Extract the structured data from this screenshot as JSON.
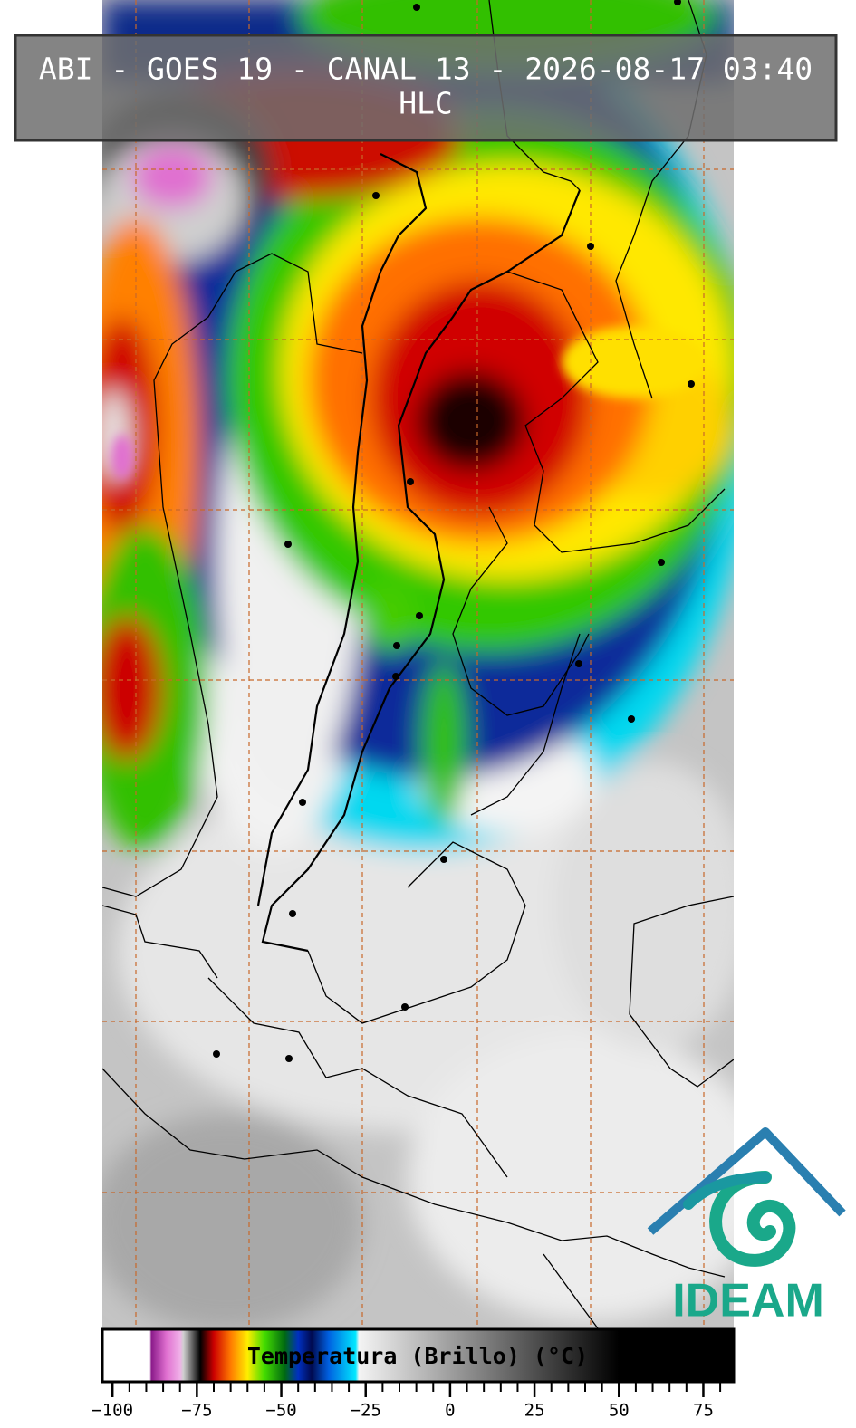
{
  "header": {
    "title": "ABI - GOES 19 - CANAL 13 - 2026-08-17 03:40",
    "subtitle": "HLC"
  },
  "colorbar": {
    "label": "Temperatura (Brillo) (°C)",
    "lim": [
      -103,
      84
    ],
    "ticks": [
      {
        "value": -100,
        "label": "−100"
      },
      {
        "value": -75,
        "label": "−75"
      },
      {
        "value": -50,
        "label": "−50"
      },
      {
        "value": -25,
        "label": "−25"
      },
      0,
      25,
      50,
      75
    ],
    "minor_ticks": [
      -95,
      -90,
      -85,
      -80,
      -70,
      -65,
      -60,
      -55,
      -45,
      -40,
      -35,
      -30,
      -20,
      -15,
      -10,
      -5,
      5,
      10,
      15,
      20,
      30,
      35,
      40,
      45,
      55,
      60,
      65,
      70,
      80
    ],
    "stops": [
      {
        "value": -103,
        "color": "#ffffff"
      },
      {
        "value": -89,
        "color": "#ffffff"
      },
      {
        "value": -88.5,
        "color": "#8a1a8a"
      },
      {
        "value": -84,
        "color": "#e070d0"
      },
      {
        "value": -80,
        "color": "#f0b0e8"
      },
      {
        "value": -79,
        "color": "#d0d0d0"
      },
      {
        "value": -76,
        "color": "#555555"
      },
      {
        "value": -74,
        "color": "#000000"
      },
      {
        "value": -70,
        "color": "#cc0000"
      },
      {
        "value": -65,
        "color": "#ff7a00"
      },
      {
        "value": -60,
        "color": "#ffee00"
      },
      {
        "value": -55,
        "color": "#44dd00"
      },
      {
        "value": -49,
        "color": "#006a10"
      },
      {
        "value": -45,
        "color": "#0030c0"
      },
      {
        "value": -41,
        "color": "#000a50"
      },
      {
        "value": -36,
        "color": "#0060e0"
      },
      {
        "value": -28,
        "color": "#00e8ff"
      },
      {
        "value": -27,
        "color": "#f4f4f4"
      },
      {
        "value": 50,
        "color": "#000000"
      },
      {
        "value": 84,
        "color": "#000000"
      }
    ]
  },
  "logo": {
    "text": "IDEAM"
  }
}
